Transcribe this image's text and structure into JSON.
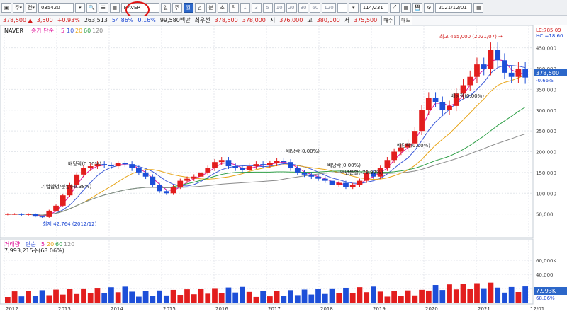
{
  "toolbar": {
    "code": "035420",
    "stock_name": "NAVER",
    "period_tabs": [
      "일",
      "주",
      "월",
      "년",
      "분",
      "초",
      "틱"
    ],
    "active_period": "월",
    "minute_options": [
      "1",
      "3",
      "5",
      "10",
      "20",
      "30",
      "60",
      "120"
    ],
    "count_display": "114/231",
    "date": "2021/12/01"
  },
  "quote": {
    "price": "378,500 ▲",
    "change": "3,500",
    "change_pct": "+0.93%",
    "volume": "263,513",
    "volume_pct": "54.86%",
    "misc": "0.16%",
    "amount": "99,580백만",
    "prefer": "최우선",
    "ask": "378,500",
    "bid": "378,000",
    "open_label": "시",
    "open": "376,000",
    "high_label": "고",
    "high": "380,000",
    "low_label": "저",
    "low": "375,500",
    "buy_label": "매수",
    "sell_label": "매도"
  },
  "price_panel": {
    "legend_name": "NAVER",
    "legend_items": [
      "종가 단순",
      "5",
      "10",
      "20",
      "60",
      "120"
    ],
    "lc_label": "LC:785.09",
    "hc_label": "HC:=18.60",
    "current_price": "378,500",
    "current_pct": "-0.66%",
    "annotations": [
      "최고 465,000 (2021/07) →",
      "배당락(0.00%)",
      "배당락(0.00%)",
      "배당락(0.00%)",
      "배당락(0.00%)",
      "액면분할(-79.97%)",
      "배당락(0.00%)",
      "기업합병/분할(-6.38%)",
      "최저 42,764 (2012/12)"
    ]
  },
  "volume_panel": {
    "legend_items": [
      "거래량",
      "단순",
      "5",
      "20",
      "60",
      "120"
    ],
    "value_label": "7,993,215주(68.06%)",
    "current": "7,993K",
    "current_pct": "68.06%"
  },
  "colors": {
    "up": "#e21e1e",
    "down": "#1d4fd8",
    "ma5": "#e0149a",
    "ma10": "#3a58d8",
    "ma20": "#e8a518",
    "ma60": "#30a048",
    "ma120": "#8a8a8a"
  },
  "chart_data": {
    "type": "candlestick",
    "x_label_years": [
      "2012",
      "2013",
      "2014",
      "2015",
      "2016",
      "2017",
      "2018",
      "2019",
      "2020",
      "2021",
      "12/01"
    ],
    "y_ticks": [
      50000,
      100000,
      150000,
      200000,
      250000,
      300000,
      350000,
      400000,
      450000
    ],
    "y_tick_labels": [
      "50,000",
      "100,000",
      "150,000",
      "200,000",
      "250,000",
      "300,000",
      "350,000",
      "400,000",
      "450,000"
    ],
    "ylim": [
      0,
      480000
    ],
    "volume_ticks": [
      20000,
      40000,
      60000
    ],
    "volume_tick_labels": [
      "20,000",
      "40,000",
      "60,000K"
    ],
    "monthly_close": [
      50000,
      50000,
      48000,
      50000,
      44000,
      42764,
      58000,
      70000,
      95000,
      120000,
      145000,
      160000,
      165000,
      170000,
      168000,
      165000,
      172000,
      170000,
      160000,
      150000,
      140000,
      120000,
      105000,
      100000,
      115000,
      130000,
      135000,
      140000,
      150000,
      160000,
      175000,
      180000,
      165000,
      160000,
      155000,
      165000,
      170000,
      168000,
      172000,
      178000,
      175000,
      160000,
      150000,
      145000,
      140000,
      135000,
      130000,
      120000,
      125000,
      115000,
      120000,
      130000,
      150000,
      140000,
      160000,
      180000,
      200000,
      210000,
      220000,
      250000,
      300000,
      330000,
      320000,
      300000,
      310000,
      340000,
      360000,
      380000,
      410000,
      400000,
      445000,
      420000,
      390000,
      380000,
      400000,
      378500
    ]
  }
}
